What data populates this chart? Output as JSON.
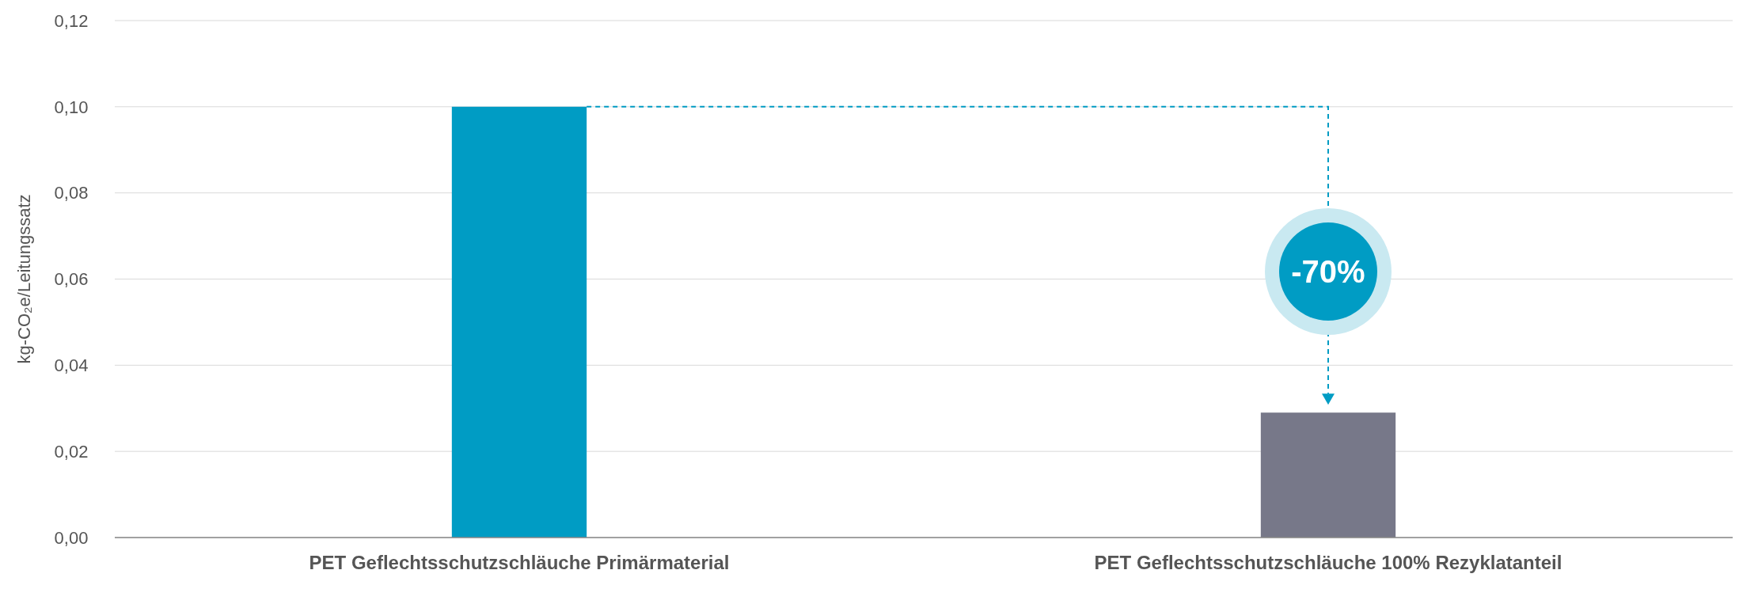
{
  "chart_data": {
    "type": "bar",
    "ylabel": "kg-CO₂e/Leitungssatz",
    "categories": [
      "PET Geflechtsschutzschläuche Primärmaterial",
      "PET Geflechtsschutzschläuche 100% Rezyklatanteil"
    ],
    "values": [
      0.1,
      0.029
    ],
    "colors": [
      "#009cc4",
      "#777889"
    ],
    "ylim": [
      0,
      0.12
    ],
    "yticks": [
      {
        "value": 0,
        "label": "0,00"
      },
      {
        "value": 0.02,
        "label": "0,02"
      },
      {
        "value": 0.04,
        "label": "0,04"
      },
      {
        "value": 0.06,
        "label": "0,06"
      },
      {
        "value": 0.08,
        "label": "0,08"
      },
      {
        "value": 0.1,
        "label": "0,10"
      },
      {
        "value": 0.12,
        "label": "0,12"
      }
    ],
    "grid": "y",
    "annotations": [
      "-70%"
    ]
  }
}
